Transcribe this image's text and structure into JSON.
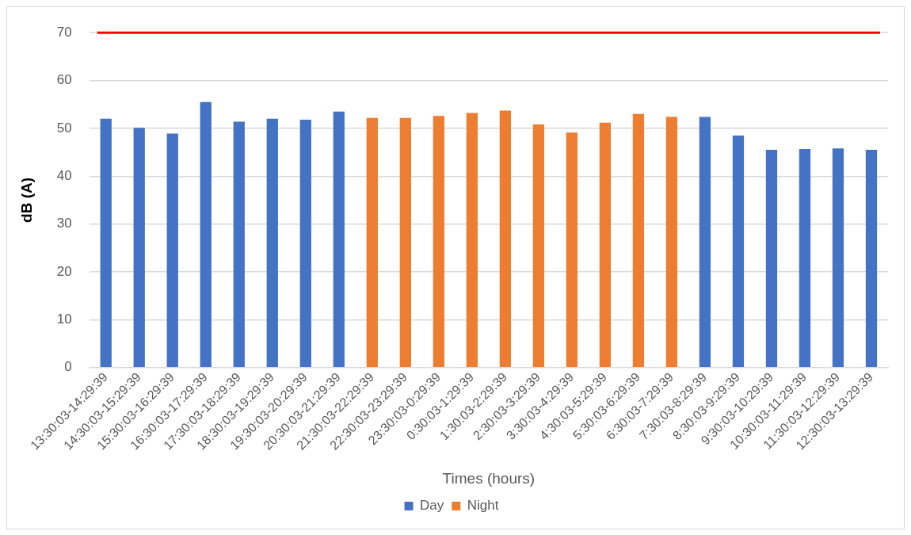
{
  "chart_data": {
    "type": "bar",
    "xlabel": "Times (hours)",
    "ylabel": "dB (A)",
    "categories": [
      "13:30:03-14:29:39",
      "14:30:03-15:29:39",
      "15:30:03-16:29:39",
      "16:30:03-17:29:39",
      "17:30:03-18:29:39",
      "18:30:03-19:29:39",
      "19:30:03-20:29:39",
      "20:30:03-21:29:39",
      "21:30:03-22:29:39",
      "22:30:03-23:29:39",
      "23:30:03-0:29:39",
      "0:30:03-1:29:39",
      "1:30:03-2:29:39",
      "2:30:03-3:29:39",
      "3:30:03-4:29:39",
      "4:30:03-5:29:39",
      "5:30:03-6:29:39",
      "6:30:03-7:29:39",
      "7:30:03-8:29:39",
      "8:30:03-9:29:39",
      "9:30:03-10:29:39",
      "10:30:03-11:29:39",
      "11:30:03-12:29:39",
      "12:30:03-13:29:39"
    ],
    "series": [
      {
        "name": "Day",
        "color": "#4472c4",
        "values": [
          52.0,
          50.1,
          48.9,
          55.5,
          51.4,
          52.0,
          51.8,
          53.5,
          null,
          null,
          null,
          null,
          null,
          null,
          null,
          null,
          null,
          null,
          52.4,
          48.5,
          45.5,
          45.7,
          45.8,
          45.5
        ]
      },
      {
        "name": "Night",
        "color": "#ed7d31",
        "values": [
          null,
          null,
          null,
          null,
          null,
          null,
          null,
          null,
          52.2,
          52.2,
          52.6,
          53.2,
          53.7,
          50.8,
          49.1,
          51.2,
          53.0,
          52.4,
          null,
          null,
          null,
          null,
          null,
          null
        ]
      }
    ],
    "ylim": [
      0,
      70
    ],
    "yticks": [
      0,
      10,
      20,
      30,
      40,
      50,
      60,
      70
    ],
    "grid": "y",
    "legend": "bottom",
    "ref_lines": [
      {
        "axis": "y",
        "value": 70,
        "color": "#ff0000"
      }
    ]
  }
}
